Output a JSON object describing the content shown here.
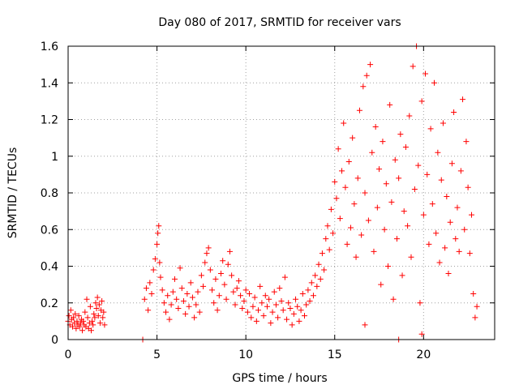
{
  "chart_data": {
    "type": "scatter",
    "title": "Day 080 of 2017, SRMTID for receiver vars",
    "xlabel": "GPS time / hours",
    "ylabel": "SRMTID / TECUs",
    "xlim": [
      0,
      24
    ],
    "ylim": [
      0,
      1.6
    ],
    "x_ticks": [
      0,
      5,
      10,
      15,
      20
    ],
    "x_tick_labels": [
      "0",
      "5",
      "10",
      "15",
      "20"
    ],
    "y_ticks": [
      0,
      0.2,
      0.4,
      0.6,
      0.8,
      1,
      1.2,
      1.4,
      1.6
    ],
    "y_tick_labels": [
      "0",
      "0.2",
      "0.4",
      "0.6",
      "0.8",
      "1",
      "1.2",
      "1.4",
      "1.6"
    ],
    "grid": true,
    "marker": "+",
    "series": [
      {
        "name": "SRMTID",
        "color": "#ff0000",
        "points": [
          [
            0.0,
            0.1
          ],
          [
            0.05,
            0.13
          ],
          [
            0.1,
            0.08
          ],
          [
            0.15,
            0.16
          ],
          [
            0.2,
            0.11
          ],
          [
            0.25,
            0.07
          ],
          [
            0.3,
            0.12
          ],
          [
            0.35,
            0.09
          ],
          [
            0.4,
            0.14
          ],
          [
            0.45,
            0.06
          ],
          [
            0.5,
            0.1
          ],
          [
            0.55,
            0.08
          ],
          [
            0.6,
            0.13
          ],
          [
            0.65,
            0.07
          ],
          [
            0.7,
            0.09
          ],
          [
            0.75,
            0.11
          ],
          [
            0.8,
            0.05
          ],
          [
            0.85,
            0.1
          ],
          [
            0.9,
            0.08
          ],
          [
            0.95,
            0.15
          ],
          [
            1.0,
            0.07
          ],
          [
            1.05,
            0.22
          ],
          [
            1.1,
            0.12
          ],
          [
            1.15,
            0.06
          ],
          [
            1.2,
            0.09
          ],
          [
            1.25,
            0.18
          ],
          [
            1.3,
            0.05
          ],
          [
            1.35,
            0.1
          ],
          [
            1.4,
            0.08
          ],
          [
            1.45,
            0.14
          ],
          [
            1.5,
            0.12
          ],
          [
            1.55,
            0.2
          ],
          [
            1.6,
            0.17
          ],
          [
            1.65,
            0.23
          ],
          [
            1.7,
            0.13
          ],
          [
            1.75,
            0.19
          ],
          [
            1.8,
            0.09
          ],
          [
            1.85,
            0.16
          ],
          [
            1.9,
            0.21
          ],
          [
            1.95,
            0.12
          ],
          [
            2.0,
            0.15
          ],
          [
            2.05,
            0.08
          ],
          [
            4.2,
            0.0
          ],
          [
            18.6,
            0.0
          ],
          [
            4.3,
            0.22
          ],
          [
            4.4,
            0.28
          ],
          [
            4.5,
            0.16
          ],
          [
            4.6,
            0.31
          ],
          [
            4.7,
            0.25
          ],
          [
            4.8,
            0.38
          ],
          [
            4.9,
            0.44
          ],
          [
            5.0,
            0.52
          ],
          [
            5.05,
            0.58
          ],
          [
            5.1,
            0.62
          ],
          [
            5.15,
            0.42
          ],
          [
            5.2,
            0.34
          ],
          [
            5.3,
            0.27
          ],
          [
            5.4,
            0.2
          ],
          [
            5.5,
            0.15
          ],
          [
            5.6,
            0.24
          ],
          [
            5.7,
            0.11
          ],
          [
            5.8,
            0.19
          ],
          [
            5.9,
            0.26
          ],
          [
            6.0,
            0.33
          ],
          [
            6.1,
            0.22
          ],
          [
            6.2,
            0.17
          ],
          [
            6.3,
            0.39
          ],
          [
            6.4,
            0.28
          ],
          [
            6.5,
            0.21
          ],
          [
            6.6,
            0.14
          ],
          [
            6.7,
            0.25
          ],
          [
            6.8,
            0.18
          ],
          [
            6.9,
            0.31
          ],
          [
            7.0,
            0.23
          ],
          [
            7.1,
            0.12
          ],
          [
            7.2,
            0.19
          ],
          [
            7.3,
            0.26
          ],
          [
            7.4,
            0.15
          ],
          [
            7.5,
            0.35
          ],
          [
            7.6,
            0.29
          ],
          [
            7.7,
            0.42
          ],
          [
            7.8,
            0.47
          ],
          [
            7.9,
            0.5
          ],
          [
            8.0,
            0.38
          ],
          [
            8.1,
            0.27
          ],
          [
            8.2,
            0.2
          ],
          [
            8.3,
            0.33
          ],
          [
            8.4,
            0.16
          ],
          [
            8.5,
            0.24
          ],
          [
            8.6,
            0.36
          ],
          [
            8.7,
            0.43
          ],
          [
            8.8,
            0.3
          ],
          [
            8.9,
            0.22
          ],
          [
            9.0,
            0.41
          ],
          [
            9.1,
            0.48
          ],
          [
            9.2,
            0.35
          ],
          [
            9.3,
            0.26
          ],
          [
            9.4,
            0.19
          ],
          [
            9.5,
            0.28
          ],
          [
            9.6,
            0.32
          ],
          [
            9.7,
            0.24
          ],
          [
            9.8,
            0.17
          ],
          [
            9.9,
            0.21
          ],
          [
            10.0,
            0.27
          ],
          [
            10.1,
            0.15
          ],
          [
            10.2,
            0.25
          ],
          [
            10.3,
            0.12
          ],
          [
            10.4,
            0.18
          ],
          [
            10.5,
            0.23
          ],
          [
            10.6,
            0.1
          ],
          [
            10.7,
            0.16
          ],
          [
            10.8,
            0.29
          ],
          [
            10.9,
            0.2
          ],
          [
            11.0,
            0.13
          ],
          [
            11.1,
            0.24
          ],
          [
            11.2,
            0.18
          ],
          [
            11.3,
            0.22
          ],
          [
            11.4,
            0.09
          ],
          [
            11.5,
            0.15
          ],
          [
            11.6,
            0.26
          ],
          [
            11.7,
            0.19
          ],
          [
            11.8,
            0.12
          ],
          [
            11.9,
            0.28
          ],
          [
            12.0,
            0.21
          ],
          [
            12.1,
            0.16
          ],
          [
            12.2,
            0.34
          ],
          [
            12.3,
            0.11
          ],
          [
            12.4,
            0.2
          ],
          [
            12.5,
            0.17
          ],
          [
            12.6,
            0.08
          ],
          [
            12.7,
            0.14
          ],
          [
            12.8,
            0.22
          ],
          [
            12.9,
            0.18
          ],
          [
            13.0,
            0.1
          ],
          [
            13.1,
            0.16
          ],
          [
            13.2,
            0.25
          ],
          [
            13.3,
            0.13
          ],
          [
            13.4,
            0.19
          ],
          [
            13.5,
            0.27
          ],
          [
            13.6,
            0.21
          ],
          [
            13.7,
            0.31
          ],
          [
            13.8,
            0.24
          ],
          [
            13.9,
            0.35
          ],
          [
            14.0,
            0.29
          ],
          [
            14.1,
            0.41
          ],
          [
            14.2,
            0.33
          ],
          [
            14.3,
            0.47
          ],
          [
            14.4,
            0.38
          ],
          [
            14.5,
            0.55
          ],
          [
            14.6,
            0.62
          ],
          [
            14.7,
            0.49
          ],
          [
            14.8,
            0.71
          ],
          [
            14.9,
            0.58
          ],
          [
            15.0,
            0.86
          ],
          [
            15.1,
            0.77
          ],
          [
            15.2,
            1.04
          ],
          [
            15.3,
            0.66
          ],
          [
            15.4,
            0.92
          ],
          [
            15.5,
            1.18
          ],
          [
            15.6,
            0.83
          ],
          [
            15.7,
            0.52
          ],
          [
            15.8,
            0.97
          ],
          [
            15.9,
            0.61
          ],
          [
            16.0,
            1.1
          ],
          [
            16.1,
            0.74
          ],
          [
            16.2,
            0.45
          ],
          [
            16.3,
            0.88
          ],
          [
            16.4,
            1.25
          ],
          [
            16.5,
            0.57
          ],
          [
            16.6,
            1.38
          ],
          [
            16.7,
            0.8
          ],
          [
            16.8,
            1.44
          ],
          [
            16.9,
            0.65
          ],
          [
            17.0,
            1.5
          ],
          [
            17.1,
            1.02
          ],
          [
            17.2,
            0.48
          ],
          [
            17.3,
            1.16
          ],
          [
            17.4,
            0.72
          ],
          [
            17.5,
            0.93
          ],
          [
            17.6,
            0.3
          ],
          [
            17.7,
            1.08
          ],
          [
            17.8,
            0.6
          ],
          [
            17.9,
            0.85
          ],
          [
            18.0,
            0.4
          ],
          [
            18.1,
            1.28
          ],
          [
            18.2,
            0.75
          ],
          [
            18.3,
            0.22
          ],
          [
            18.4,
            0.98
          ],
          [
            18.5,
            0.55
          ],
          [
            18.6,
            0.88
          ],
          [
            18.7,
            1.12
          ],
          [
            18.8,
            0.35
          ],
          [
            18.9,
            0.7
          ],
          [
            19.0,
            1.05
          ],
          [
            19.1,
            0.62
          ],
          [
            19.2,
            1.22
          ],
          [
            19.3,
            0.45
          ],
          [
            19.4,
            1.49
          ],
          [
            19.5,
            0.82
          ],
          [
            19.6,
            1.6
          ],
          [
            19.7,
            0.95
          ],
          [
            19.8,
            0.2
          ],
          [
            19.9,
            1.3
          ],
          [
            20.0,
            0.68
          ],
          [
            20.1,
            1.45
          ],
          [
            20.2,
            0.9
          ],
          [
            20.3,
            0.52
          ],
          [
            20.4,
            1.15
          ],
          [
            20.5,
            0.74
          ],
          [
            20.6,
            1.4
          ],
          [
            20.7,
            0.58
          ],
          [
            20.8,
            1.02
          ],
          [
            20.9,
            0.42
          ],
          [
            21.0,
            0.87
          ],
          [
            21.1,
            1.18
          ],
          [
            21.2,
            0.5
          ],
          [
            21.3,
            0.78
          ],
          [
            21.4,
            0.36
          ],
          [
            21.5,
            0.64
          ],
          [
            21.6,
            0.96
          ],
          [
            21.7,
            1.24
          ],
          [
            21.8,
            0.55
          ],
          [
            21.9,
            0.72
          ],
          [
            22.0,
            0.48
          ],
          [
            22.1,
            0.92
          ],
          [
            22.2,
            1.31
          ],
          [
            22.3,
            0.6
          ],
          [
            22.4,
            1.08
          ],
          [
            22.5,
            0.83
          ],
          [
            22.6,
            0.47
          ],
          [
            22.7,
            0.68
          ],
          [
            22.8,
            0.25
          ],
          [
            22.9,
            0.12
          ],
          [
            23.0,
            0.18
          ],
          [
            19.9,
            0.03
          ],
          [
            16.7,
            0.08
          ]
        ]
      }
    ]
  }
}
